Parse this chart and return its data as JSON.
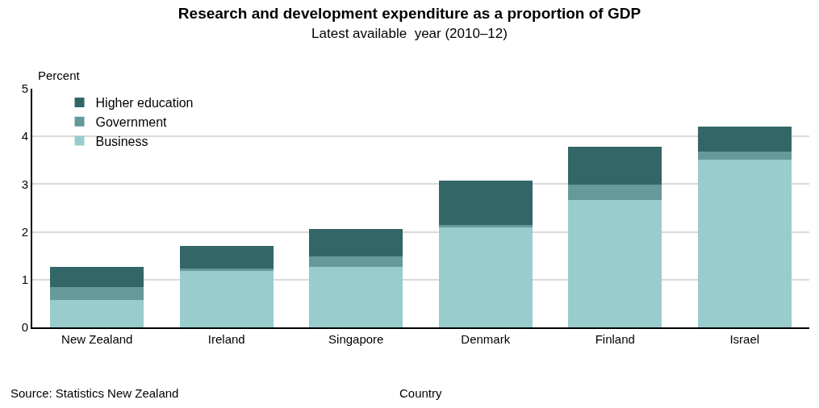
{
  "chart_data": {
    "type": "bar",
    "title": "Research and development expenditure as a proportion of GDP",
    "subtitle": "Latest available  year (2010–12)",
    "xlabel": "Country",
    "ylabel": "Percent",
    "categories": [
      "New Zealand",
      "Ireland",
      "Singapore",
      "Denmark",
      "Finland",
      "Israel"
    ],
    "stacked": true,
    "series": [
      {
        "name": "Business",
        "color": "#99cccc",
        "values": [
          0.58,
          1.18,
          1.27,
          2.1,
          2.67,
          3.52
        ]
      },
      {
        "name": "Government",
        "color": "#669999",
        "values": [
          0.27,
          0.05,
          0.21,
          0.04,
          0.32,
          0.17
        ]
      },
      {
        "name": "Higher education",
        "color": "#336666",
        "values": [
          0.41,
          0.47,
          0.58,
          0.94,
          0.79,
          0.52
        ]
      }
    ],
    "ylim": [
      0,
      5
    ],
    "yticks": [
      0,
      1,
      2,
      3,
      4,
      5
    ],
    "grid": "y",
    "legend": "top left",
    "annotations": [
      "Source: Statistics New Zealand"
    ]
  }
}
